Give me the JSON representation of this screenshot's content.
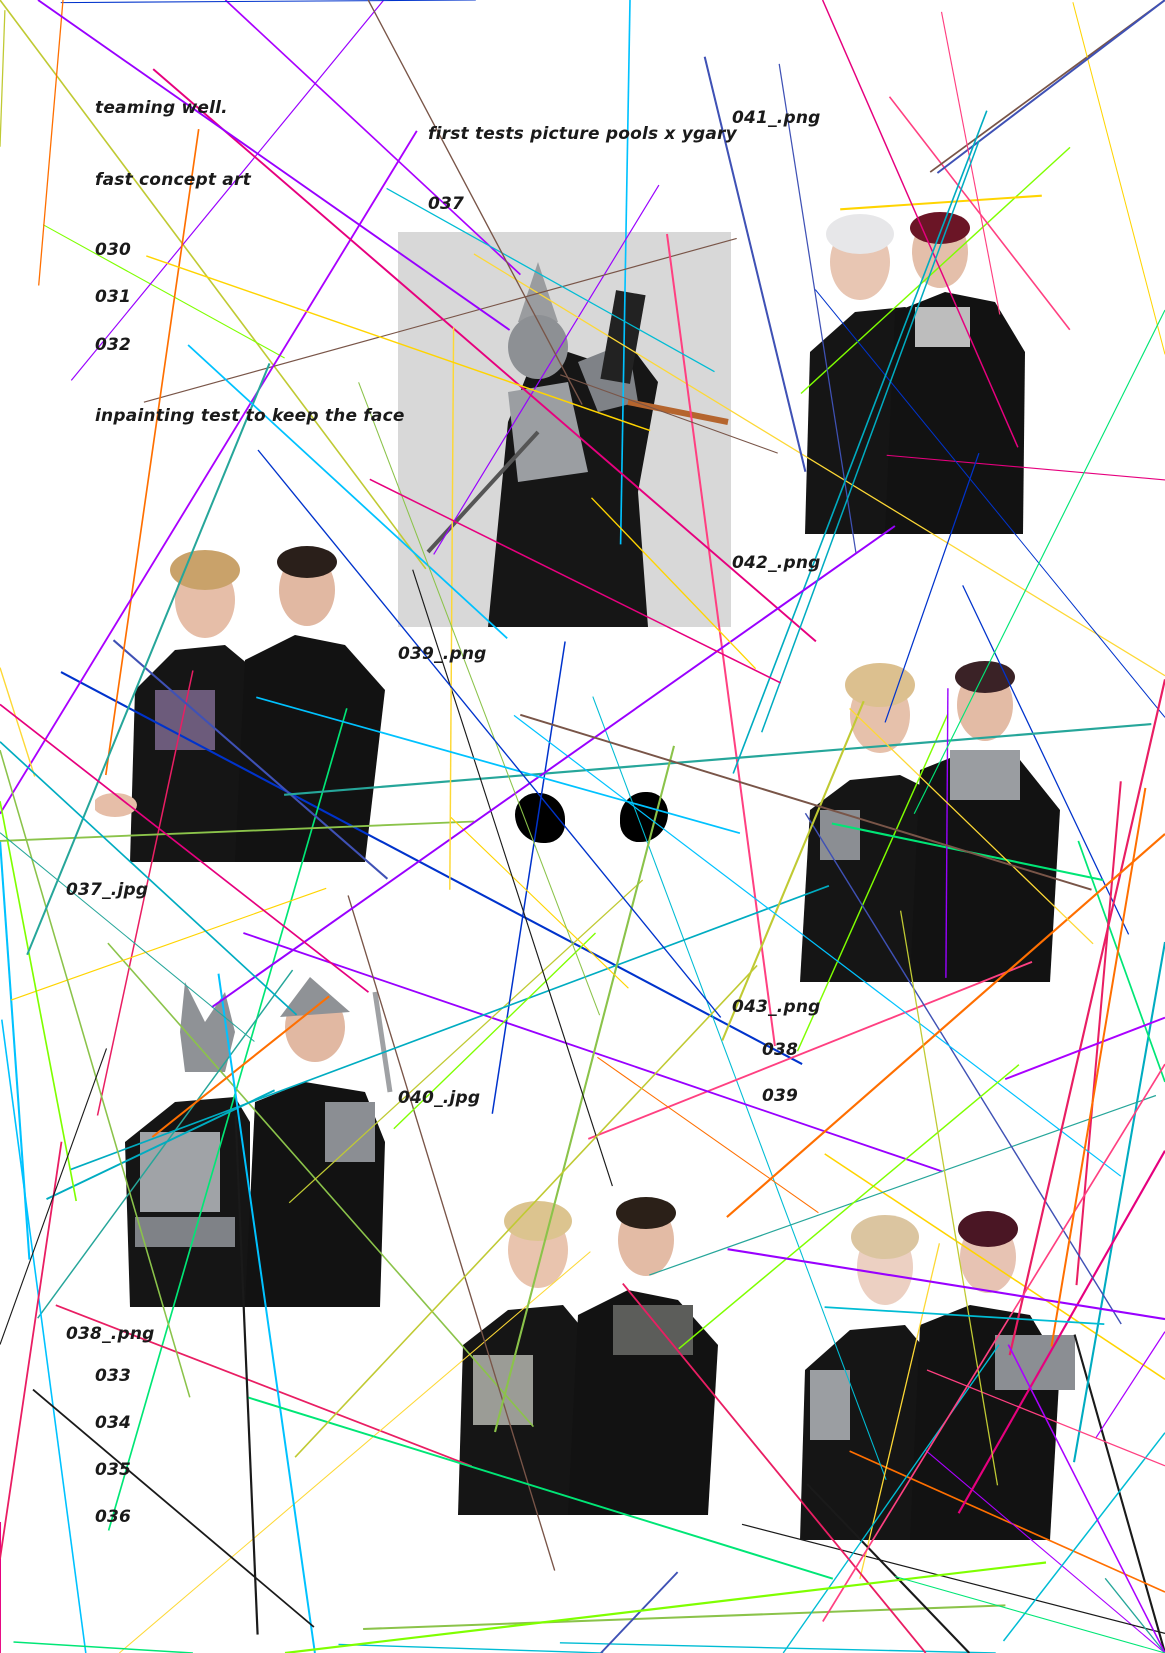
{
  "notes": {
    "teaming": "teaming well.",
    "concept": "fast concept art",
    "n030": "030",
    "n031": "031",
    "n032": "032",
    "inpainting": "inpainting test to keep the face",
    "first_tests": "first tests picture pools x ygary",
    "n037": "037",
    "n038": "038",
    "n039": "039",
    "n033": "033",
    "n034": "034",
    "n035": "035",
    "n036": "036"
  },
  "files": {
    "f037": "037_.jpg",
    "f038": "038_.png",
    "f039": "039_.png",
    "f040": "040_.jpg",
    "f041": "041_.png",
    "f042": "042_.png",
    "f043": "043_.png"
  },
  "colors": {
    "background": "#ffffff",
    "text": "#1a1a1a",
    "clothing": "#141414",
    "armor": "#8a8d92",
    "skin": "#e9c3ad"
  }
}
